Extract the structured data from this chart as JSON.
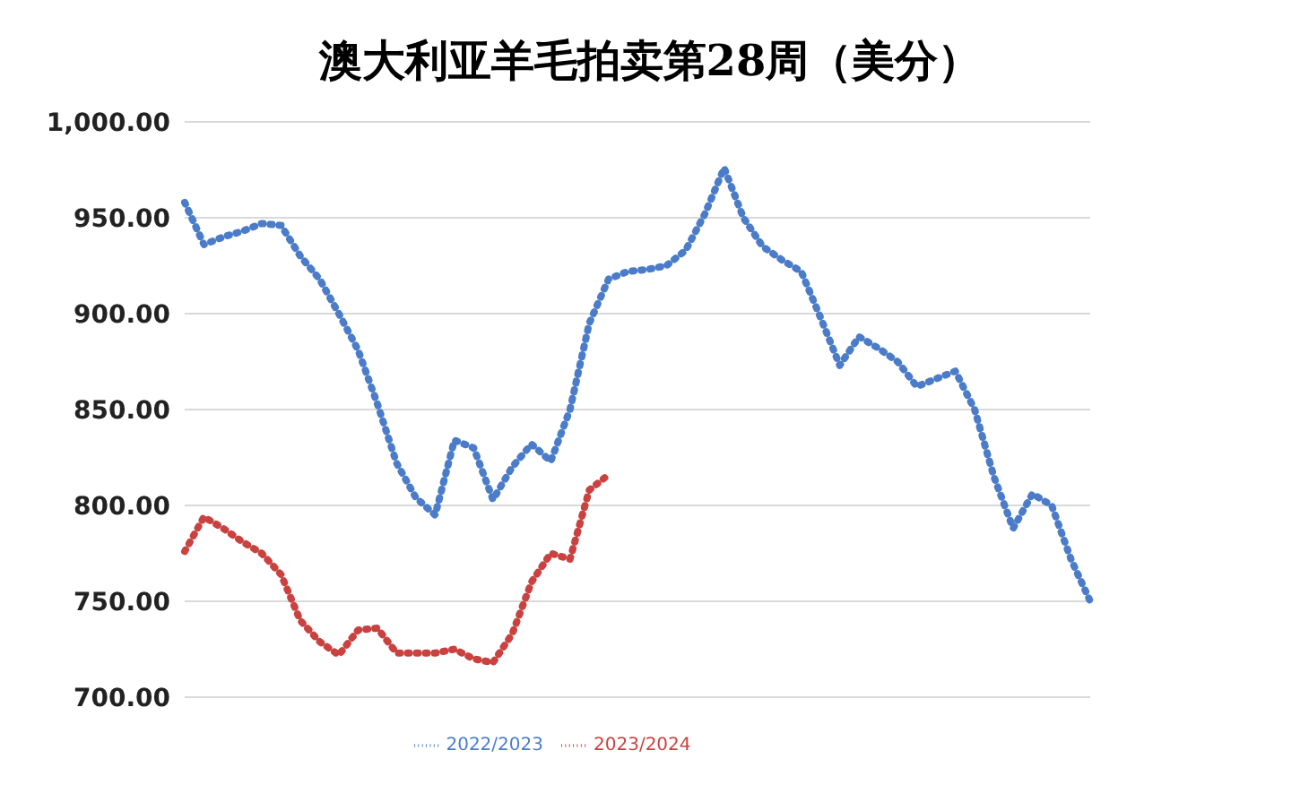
{
  "chart_data": {
    "type": "line",
    "title": "澳大利亚羊毛拍卖第28周（美分）",
    "categories": [
      null,
      null,
      null,
      null,
      null,
      null,
      null,
      null,
      null,
      null,
      null,
      null,
      null,
      null,
      null,
      null,
      null,
      null,
      null,
      null,
      null,
      null,
      null,
      null,
      null,
      null,
      null,
      null,
      null,
      null,
      null,
      null,
      null,
      null,
      null,
      null,
      null,
      null,
      null,
      null,
      null,
      null,
      null,
      null,
      null,
      null,
      null,
      null
    ],
    "series": [
      {
        "name": "2022/2023",
        "color": "#4a7cc9",
        "values": [
          958,
          936,
          940,
          943,
          947,
          946,
          930,
          918,
          900,
          881,
          853,
          822,
          804,
          795,
          834,
          830,
          803,
          820,
          832,
          823,
          850,
          895,
          918,
          922,
          923,
          925,
          933,
          952,
          976,
          950,
          935,
          928,
          922,
          898,
          873,
          888,
          882,
          875,
          862,
          866,
          870,
          850,
          815,
          788,
          806,
          800,
          772,
          750
        ]
      },
      {
        "name": "2023/2024",
        "color": "#c9423f",
        "values": [
          776,
          794,
          788,
          781,
          775,
          764,
          740,
          729,
          722,
          735,
          736,
          723,
          723,
          723,
          725,
          720,
          718,
          733,
          760,
          775,
          772,
          808,
          816,
          null,
          null,
          null,
          null,
          null,
          null,
          null,
          null,
          null,
          null,
          null,
          null,
          null,
          null,
          null,
          null,
          null,
          null,
          null,
          null,
          null,
          null,
          null,
          null,
          null
        ]
      }
    ],
    "ylim": [
      700,
      1000
    ],
    "yticks": [
      {
        "value": 700,
        "label": "700.00"
      },
      {
        "value": 750,
        "label": "750.00"
      },
      {
        "value": 800,
        "label": "800.00"
      },
      {
        "value": 850,
        "label": "850.00"
      },
      {
        "value": 900,
        "label": "900.00"
      },
      {
        "value": 950,
        "label": "950.00"
      },
      {
        "value": 1000,
        "label": "1,000.00"
      }
    ],
    "grid": "y",
    "legend": "bottom",
    "line_style": "dotted",
    "marker": "none",
    "tick_labels": "y"
  }
}
